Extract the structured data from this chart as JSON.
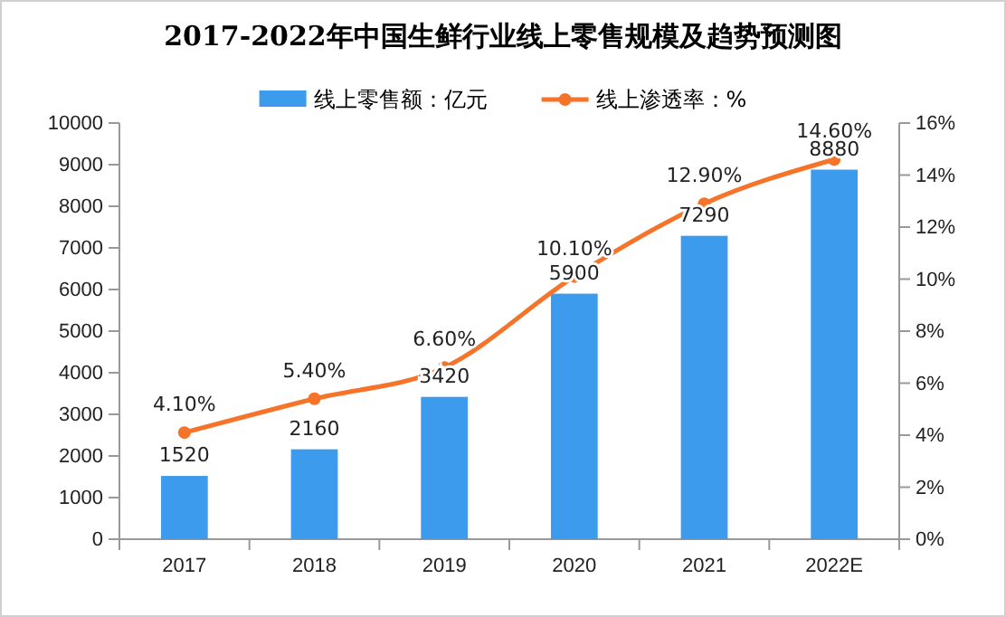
{
  "chart_data": {
    "type": "bar",
    "title": "2017-2022年中国生鲜行业线上零售规模及趋势预测图",
    "categories": [
      "2017",
      "2018",
      "2019",
      "2020",
      "2021",
      "2022E"
    ],
    "series": [
      {
        "name": "线上零售额：亿元",
        "color": "#3d9bee",
        "values": [
          1520,
          2160,
          3420,
          5900,
          7290,
          8880
        ],
        "value_labels": [
          "1520",
          "2160",
          "3420",
          "5900",
          "7290",
          "8880"
        ]
      },
      {
        "name": "线上渗透率：%",
        "type": "line",
        "axis": "y2",
        "color": "#f5742a",
        "marker": "circle",
        "values": [
          4.1,
          5.4,
          6.6,
          10.1,
          12.9,
          14.6
        ],
        "value_labels": [
          "4.10%",
          "5.40%",
          "6.60%",
          "10.10%",
          "12.90%",
          "14.60%"
        ]
      }
    ],
    "ylim": [
      0,
      10000
    ],
    "yticks": [
      0,
      1000,
      2000,
      3000,
      4000,
      5000,
      6000,
      7000,
      8000,
      9000,
      10000
    ],
    "y2lim": [
      0,
      16
    ],
    "y2ticks": [
      {
        "value": 0,
        "label": "0%"
      },
      {
        "value": 2,
        "label": "2%"
      },
      {
        "value": 4,
        "label": "4%"
      },
      {
        "value": 6,
        "label": "6%"
      },
      {
        "value": 8,
        "label": "8%"
      },
      {
        "value": 10,
        "label": "10%"
      },
      {
        "value": 12,
        "label": "12%"
      },
      {
        "value": 14,
        "label": "14%"
      },
      {
        "value": 16,
        "label": "16%"
      }
    ],
    "legend": "top",
    "grid": false
  }
}
